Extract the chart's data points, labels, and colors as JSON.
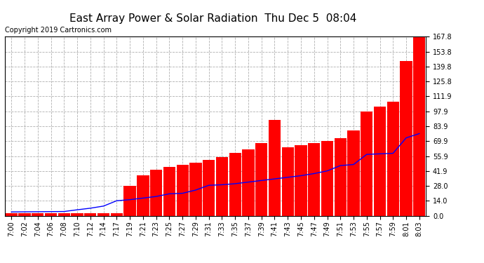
{
  "title": "East Array Power & Solar Radiation  Thu Dec 5  08:04",
  "copyright": "Copyright 2019 Cartronics.com",
  "yticks": [
    0.0,
    14.0,
    28.0,
    41.9,
    55.9,
    69.9,
    83.9,
    97.9,
    111.9,
    125.8,
    139.8,
    153.8,
    167.8
  ],
  "ymax": 167.8,
  "xtick_labels": [
    "7:00",
    "7:02",
    "7:04",
    "7:06",
    "7:08",
    "7:10",
    "7:12",
    "7:14",
    "7:17",
    "7:19",
    "7:21",
    "7:23",
    "7:25",
    "7:27",
    "7:29",
    "7:31",
    "7:33",
    "7:35",
    "7:37",
    "7:39",
    "7:41",
    "7:43",
    "7:45",
    "7:47",
    "7:49",
    "7:51",
    "7:53",
    "7:55",
    "7:57",
    "7:59",
    "8:01",
    "8:03"
  ],
  "bar_values": [
    2.0,
    2.0,
    2.0,
    2.0,
    2.0,
    2.0,
    2.0,
    2.0,
    2.0,
    28.0,
    38.0,
    43.0,
    46.0,
    48.0,
    50.0,
    52.0,
    55.0,
    59.0,
    62.0,
    68.0,
    90.0,
    64.0,
    66.0,
    68.0,
    70.0,
    73.0,
    80.0,
    98.0,
    102.0,
    107.0,
    145.0,
    168.0
  ],
  "line_values": [
    3.5,
    3.6,
    3.7,
    3.8,
    3.9,
    5.5,
    7.0,
    9.0,
    14.0,
    15.0,
    16.5,
    18.0,
    20.5,
    21.0,
    24.0,
    28.5,
    29.0,
    30.0,
    31.5,
    33.0,
    34.5,
    36.0,
    37.5,
    39.5,
    42.0,
    47.0,
    48.0,
    57.5,
    58.0,
    58.5,
    73.0,
    77.0
  ],
  "bar_color": "#ff0000",
  "line_color": "#0000ff",
  "bg_color": "#ffffff",
  "grid_color": "#b0b0b0",
  "title_fontsize": 11,
  "tick_fontsize": 7,
  "copyright_fontsize": 7
}
